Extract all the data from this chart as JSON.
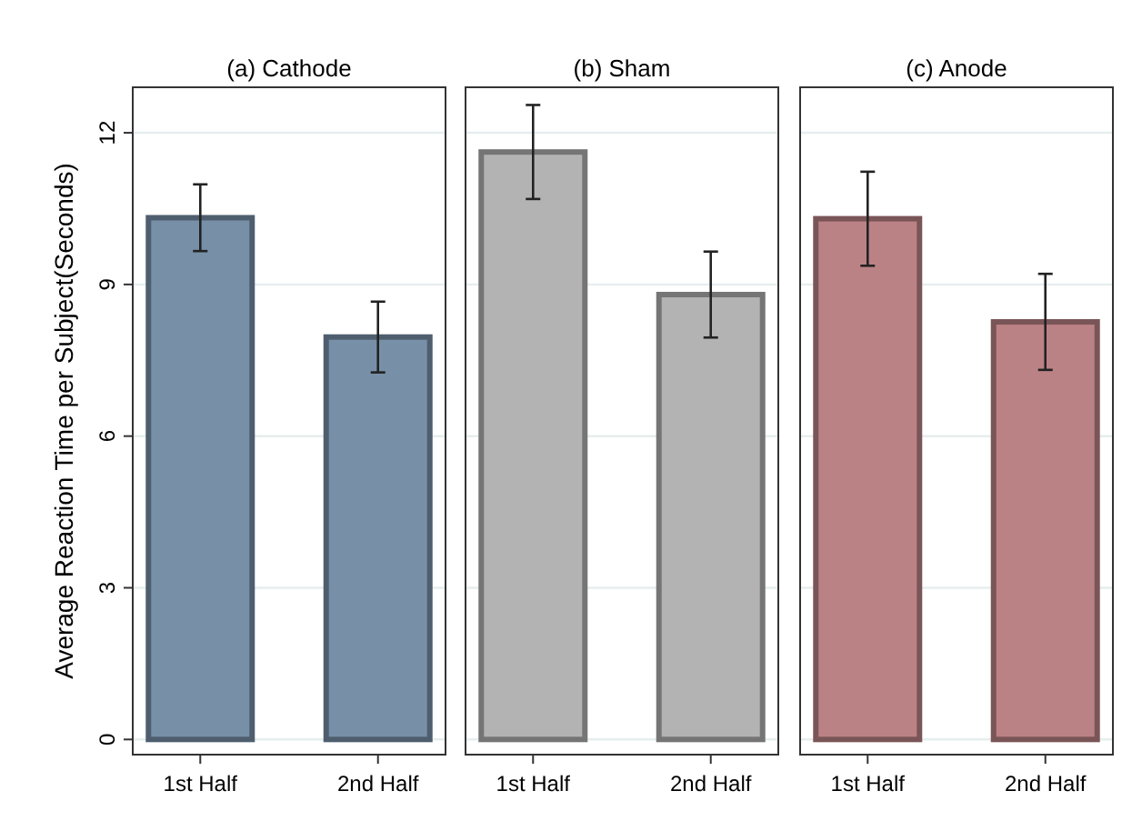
{
  "chart_data": [
    {
      "type": "bar",
      "title": "(a) Cathode",
      "ylabel": "Average Reaction Time per Subject(Seconds)",
      "categories": [
        "1st Half",
        "2nd Half"
      ],
      "values": [
        10.32,
        7.96
      ],
      "errors": [
        0.66,
        0.7
      ],
      "color": "#7790a8",
      "ylim": [
        -0.3,
        12.9
      ],
      "yticks": [
        0,
        3,
        6,
        9,
        12
      ],
      "grid": "y"
    },
    {
      "type": "bar",
      "title": "(b) Sham",
      "categories": [
        "1st Half",
        "2nd Half"
      ],
      "values": [
        11.62,
        8.8
      ],
      "errors": [
        0.93,
        0.85
      ],
      "color": "#b3b3b3",
      "ylim": [
        -0.3,
        12.9
      ],
      "yticks": [
        0,
        3,
        6,
        9,
        12
      ],
      "grid": "y",
      "tick_labels": "x"
    },
    {
      "type": "bar",
      "title": "(c) Anode",
      "categories": [
        "1st Half",
        "2nd Half"
      ],
      "values": [
        10.3,
        8.26
      ],
      "errors": [
        0.93,
        0.95
      ],
      "color": "#bb8285",
      "ylim": [
        -0.3,
        12.9
      ],
      "yticks": [
        0,
        3,
        6,
        9,
        12
      ],
      "grid": "y",
      "tick_labels": "x"
    }
  ]
}
